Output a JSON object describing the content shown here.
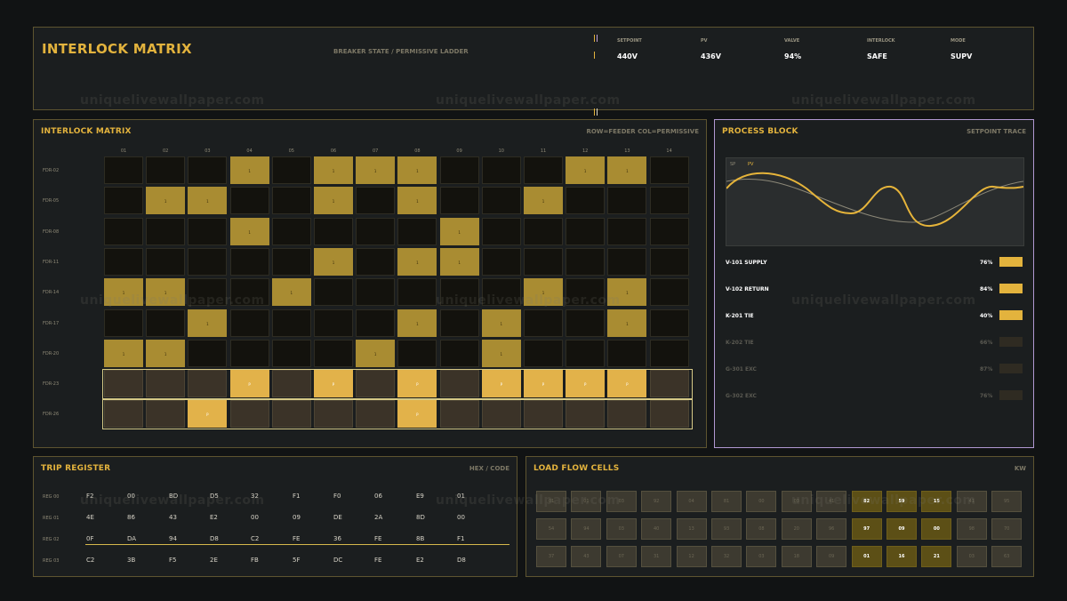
{
  "header": {
    "title": "INTERLOCK MATRIX",
    "subtitle": "BREAKER STATE / PERMISSIVE LADDER",
    "stats": [
      {
        "label": "SETPOINT",
        "value": "440V"
      },
      {
        "label": "PV",
        "value": "436V"
      },
      {
        "label": "VALVE",
        "value": "94%"
      },
      {
        "label": "INTERLOCK",
        "value": "SAFE"
      },
      {
        "label": "MODE",
        "value": "SUPV"
      }
    ]
  },
  "matrix": {
    "title": "INTERLOCK MATRIX",
    "legend": "ROW=FEEDER  COL=PERMISSIVE",
    "columns": [
      "01",
      "02",
      "03",
      "04",
      "05",
      "06",
      "07",
      "08",
      "09",
      "10",
      "11",
      "12",
      "13",
      "14"
    ],
    "rows": [
      {
        "label": "FDR-02",
        "cells": [
          "",
          "",
          "",
          "1",
          "",
          "1",
          "1",
          "1",
          "",
          "",
          "",
          "1",
          "1",
          ""
        ]
      },
      {
        "label": "FDR-05",
        "cells": [
          "",
          "1",
          "1",
          "",
          "",
          "1",
          "",
          "1",
          "",
          "",
          "1",
          "",
          "",
          ""
        ]
      },
      {
        "label": "FDR-08",
        "cells": [
          "",
          "",
          "",
          "1",
          "",
          "",
          "",
          "",
          "1",
          "",
          "",
          "",
          "",
          ""
        ]
      },
      {
        "label": "FDR-11",
        "cells": [
          "",
          "",
          "",
          "",
          "",
          "1",
          "",
          "1",
          "1",
          "",
          "",
          "",
          "",
          ""
        ]
      },
      {
        "label": "FDR-14",
        "cells": [
          "1",
          "1",
          "",
          "",
          "1",
          "",
          "",
          "",
          "",
          "",
          "1",
          "",
          "1",
          ""
        ]
      },
      {
        "label": "FDR-17",
        "cells": [
          "",
          "",
          "1",
          "",
          "",
          "",
          "",
          "1",
          "",
          "1",
          "",
          "",
          "1",
          ""
        ]
      },
      {
        "label": "FDR-20",
        "cells": [
          "1",
          "1",
          "",
          "",
          "",
          "",
          "1",
          "",
          "",
          "1",
          "",
          "",
          "",
          ""
        ]
      },
      {
        "label": "FDR-23",
        "highlight": true,
        "cells": [
          "",
          "",
          "",
          "P",
          "",
          "P",
          "",
          "P",
          "",
          "P",
          "P",
          "P",
          "P",
          ""
        ]
      },
      {
        "label": "FDR-26",
        "highlight": true,
        "cells": [
          "",
          "",
          "P",
          "",
          "",
          "",
          "",
          "P",
          "",
          "",
          "",
          "",
          "",
          ""
        ]
      }
    ]
  },
  "process": {
    "title": "PROCESS BLOCK",
    "subtitle": "SETPOINT TRACE",
    "legend_sp": "SP",
    "legend_pv": "PV",
    "lines": [
      {
        "name": "V-101 SUPPLY",
        "percent": "76%",
        "active": true
      },
      {
        "name": "V-102 RETURN",
        "percent": "84%",
        "active": true
      },
      {
        "name": "K-201 TIE",
        "percent": "40%",
        "active": true
      },
      {
        "name": "K-202 TIE",
        "percent": "66%",
        "active": false
      },
      {
        "name": "G-301 EXC",
        "percent": "87%",
        "active": false
      },
      {
        "name": "G-302 EXC",
        "percent": "76%",
        "active": false
      }
    ]
  },
  "trip": {
    "title": "TRIP REGISTER",
    "subtitle": "HEX / CODE",
    "rows": [
      {
        "label": "REG 00",
        "values": [
          "F2",
          "00",
          "BD",
          "D5",
          "32",
          "F1",
          "F0",
          "06",
          "E9",
          "01"
        ]
      },
      {
        "label": "REG 01",
        "values": [
          "4E",
          "86",
          "43",
          "E2",
          "00",
          "09",
          "DE",
          "2A",
          "8D",
          "00"
        ]
      },
      {
        "label": "REG 02",
        "values": [
          "0F",
          "DA",
          "94",
          "D8",
          "C2",
          "FE",
          "36",
          "FE",
          "8B",
          "F1"
        ]
      },
      {
        "label": "REG 03",
        "values": [
          "C2",
          "3B",
          "F5",
          "2E",
          "FB",
          "5F",
          "DC",
          "FE",
          "E2",
          "D8"
        ]
      }
    ]
  },
  "load": {
    "title": "LOAD FLOW CELLS",
    "unit": "KW",
    "rows": [
      [
        "01",
        "01",
        "03",
        "92",
        "04",
        "81",
        "00",
        "03",
        "41",
        "82",
        "59",
        "15",
        "41",
        "95"
      ],
      [
        "54",
        "94",
        "03",
        "40",
        "13",
        "93",
        "08",
        "20",
        "96",
        "97",
        "09",
        "00",
        "98",
        "70"
      ],
      [
        "37",
        "43",
        "07",
        "31",
        "12",
        "32",
        "03",
        "18",
        "09",
        "01",
        "16",
        "21",
        "03",
        "63"
      ]
    ],
    "bright": [
      [
        0,
        9
      ],
      [
        0,
        10
      ],
      [
        0,
        11
      ],
      [
        1,
        9
      ],
      [
        1,
        10
      ],
      [
        1,
        11
      ],
      [
        2,
        9
      ],
      [
        2,
        10
      ],
      [
        2,
        11
      ]
    ]
  },
  "watermark": "uniquelivewallpaper.com",
  "colors": {
    "accent": "#e3b33d",
    "panel_border": "#5e5430",
    "process_border": "#b198d2",
    "cell_on": "#a98c32",
    "cell_permissive": "#e2b24a"
  }
}
